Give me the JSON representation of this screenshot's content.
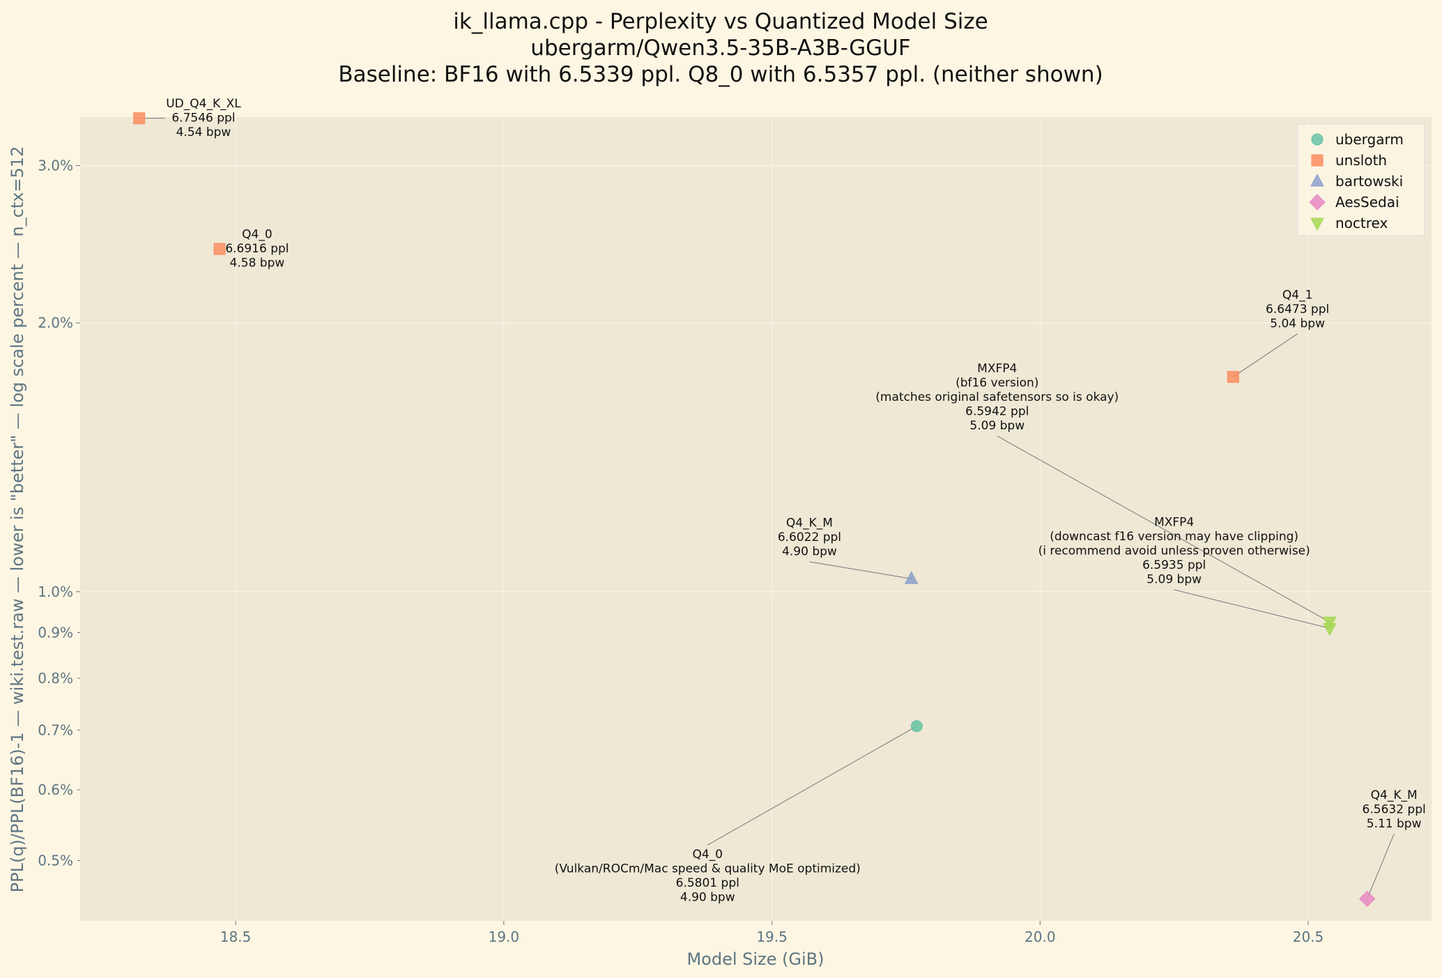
{
  "chart_data": {
    "type": "scatter",
    "title_lines": [
      "ik_llama.cpp - Perplexity vs Quantized Model Size",
      "ubergarm/Qwen3.5-35B-A3B-GGUF",
      "Baseline: BF16 with 6.5339 ppl. Q8_0 with 6.5357 ppl. (neither shown)"
    ],
    "xlabel": "Model Size (GiB)",
    "ylabel": "PPL(q)/PPL(BF16)-1 — wiki.test.raw — lower is \"better\" — log scale percent — n_ctx=512",
    "xlim": [
      18.21,
      20.73
    ],
    "ylim": [
      0.428,
      3.4
    ],
    "yscale": "log",
    "grid": true,
    "legend_position": "top-right",
    "x_ticks": [
      {
        "value": 18.5,
        "label": "18.5"
      },
      {
        "value": 19.0,
        "label": "19.0"
      },
      {
        "value": 19.5,
        "label": "19.5"
      },
      {
        "value": 20.0,
        "label": "20.0"
      },
      {
        "value": 20.5,
        "label": "20.5"
      }
    ],
    "y_ticks_major": [
      {
        "value": 1.0,
        "label": "1.0%"
      },
      {
        "value": 2.0,
        "label": "2.0%"
      },
      {
        "value": 3.0,
        "label": "3.0%"
      }
    ],
    "y_ticks_minor": [
      {
        "value": 0.5,
        "label": "0.5%"
      },
      {
        "value": 0.6,
        "label": "0.6%"
      },
      {
        "value": 0.7,
        "label": "0.7%"
      },
      {
        "value": 0.8,
        "label": "0.8%"
      },
      {
        "value": 0.9,
        "label": "0.9%"
      }
    ],
    "series": [
      {
        "name": "ubergarm",
        "marker": "circle",
        "color": "#66c2a5",
        "points": [
          {
            "x": 19.77,
            "y": 0.707,
            "label": [
              "Q4_0",
              "(Vulkan/ROCm/Mac speed & quality MoE optimized)",
              "6.5801 ppl",
              "4.90 bpw"
            ],
            "label_at": [
              19.38,
              0.48
            ]
          }
        ]
      },
      {
        "name": "unsloth",
        "marker": "square",
        "color": "#fc8d62",
        "points": [
          {
            "x": 18.32,
            "y": 3.39,
            "label": [
              "UD_Q4_K_XL",
              "6.7546 ppl",
              "4.54 bpw"
            ],
            "label_at": [
              18.44,
              3.39
            ]
          },
          {
            "x": 18.47,
            "y": 2.42,
            "label": [
              "Q4_0",
              "6.6916 ppl",
              "4.58 bpw"
            ],
            "label_at": [
              18.54,
              2.42
            ]
          },
          {
            "x": 20.36,
            "y": 1.74,
            "label": [
              "Q4_1",
              "6.6473 ppl",
              "5.04 bpw"
            ],
            "label_at": [
              20.48,
              2.07
            ]
          }
        ]
      },
      {
        "name": "bartowski",
        "marker": "triangle-up",
        "color": "#8da0cb",
        "points": [
          {
            "x": 19.76,
            "y": 1.034,
            "label": [
              "Q4_K_M",
              "6.6022 ppl",
              "4.90 bpw"
            ],
            "label_at": [
              19.57,
              1.15
            ]
          }
        ]
      },
      {
        "name": "AesSedai",
        "marker": "diamond",
        "color": "#e78ac3",
        "points": [
          {
            "x": 20.61,
            "y": 0.453,
            "label": [
              "Q4_K_M",
              "6.5632 ppl",
              "5.11 bpw"
            ],
            "label_at": [
              20.66,
              0.57
            ]
          }
        ]
      },
      {
        "name": "noctrex",
        "marker": "triangle-down",
        "color": "#a6d854",
        "points": [
          {
            "x": 20.54,
            "y": 0.925,
            "label": [
              "MXFP4",
              "(bf16 version)",
              "(matches original safetensors so is okay)",
              "6.5942 ppl",
              "5.09 bpw"
            ],
            "label_at": [
              19.92,
              1.65
            ]
          },
          {
            "x": 20.54,
            "y": 0.91,
            "label": [
              "MXFP4",
              "(downcast f16 version may have clipping)",
              "(i recommend avoid unless proven otherwise)",
              "6.5935 ppl",
              "5.09 bpw"
            ],
            "label_at": [
              20.25,
              1.11
            ]
          }
        ]
      }
    ]
  }
}
